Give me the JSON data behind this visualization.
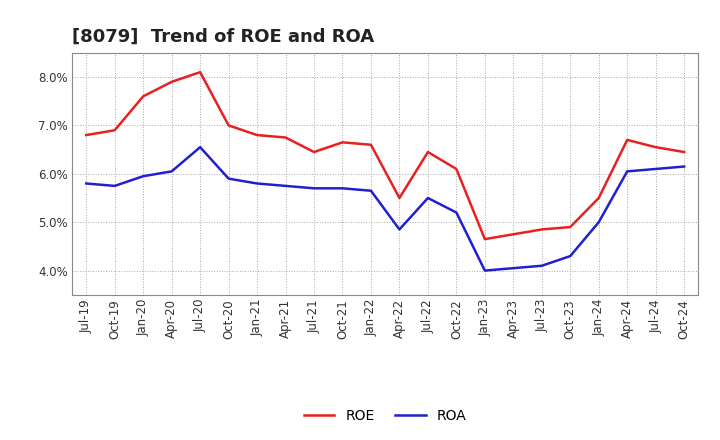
{
  "title": "[8079]  Trend of ROE and ROA",
  "x_labels": [
    "Jul-19",
    "Oct-19",
    "Jan-20",
    "Apr-20",
    "Jul-20",
    "Oct-20",
    "Jan-21",
    "Apr-21",
    "Jul-21",
    "Oct-21",
    "Jan-22",
    "Apr-22",
    "Jul-22",
    "Oct-22",
    "Jan-23",
    "Apr-23",
    "Jul-23",
    "Oct-23",
    "Jan-24",
    "Apr-24",
    "Jul-24",
    "Oct-24"
  ],
  "roe": [
    6.8,
    6.9,
    7.6,
    7.9,
    8.1,
    7.0,
    6.8,
    6.75,
    6.45,
    6.65,
    6.6,
    5.5,
    6.45,
    6.1,
    4.65,
    4.75,
    4.85,
    4.9,
    5.5,
    6.7,
    6.55,
    6.45
  ],
  "roa": [
    5.8,
    5.75,
    5.95,
    6.05,
    6.55,
    5.9,
    5.8,
    5.75,
    5.7,
    5.7,
    5.65,
    4.85,
    5.5,
    5.2,
    4.0,
    4.05,
    4.1,
    4.3,
    5.0,
    6.05,
    6.1,
    6.15
  ],
  "roe_color": "#e82020",
  "roa_color": "#2020d0",
  "ylim": [
    3.5,
    8.5
  ],
  "yticks": [
    4.0,
    5.0,
    6.0,
    7.0,
    8.0
  ],
  "ytick_labels": [
    "4.0%",
    "5.0%",
    "6.0%",
    "7.0%",
    "8.0%"
  ],
  "background_color": "#ffffff",
  "grid_color": "#aaaaaa",
  "line_width": 1.8,
  "legend_labels": [
    "ROE",
    "ROA"
  ],
  "title_fontsize": 13,
  "tick_fontsize": 8.5,
  "legend_fontsize": 10
}
